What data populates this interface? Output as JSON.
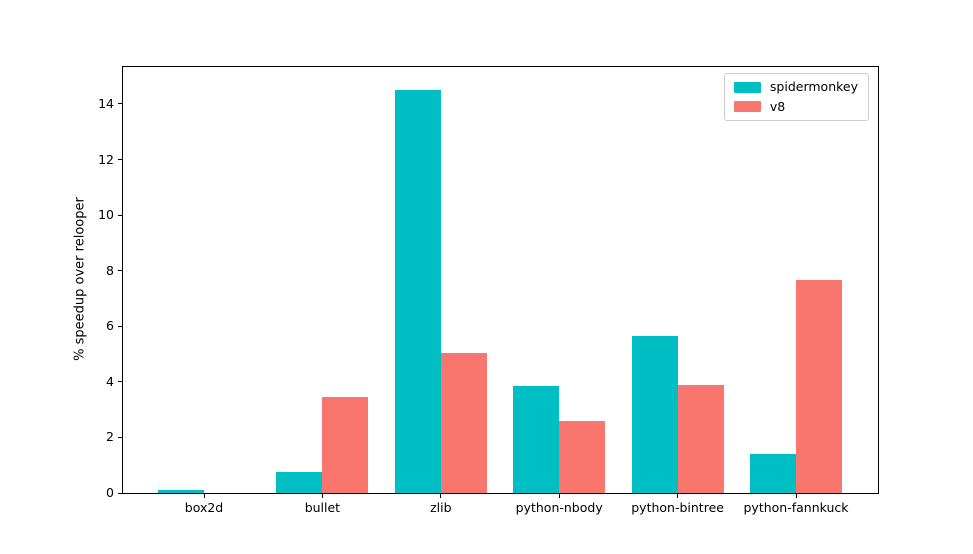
{
  "figure": {
    "background": "#ffffff"
  },
  "chart_data": {
    "type": "bar",
    "title": "",
    "xlabel": "",
    "ylabel": "% speedup over relooper",
    "categories": [
      "box2d",
      "bullet",
      "zlib",
      "python-nbody",
      "python-bintree",
      "python-fannkuck"
    ],
    "series": [
      {
        "name": "spidermonkey",
        "color": "#00BFC4",
        "values": [
          0.1,
          0.75,
          14.5,
          3.85,
          5.65,
          1.4
        ]
      },
      {
        "name": "v8",
        "color": "#F8766D",
        "values": [
          0.0,
          3.45,
          5.05,
          2.6,
          3.9,
          7.65
        ]
      }
    ],
    "yticks": [
      0,
      2,
      4,
      6,
      8,
      10,
      12,
      14
    ],
    "ylim": [
      0,
      15.33
    ],
    "grid": false,
    "legend_position": "upper right"
  }
}
